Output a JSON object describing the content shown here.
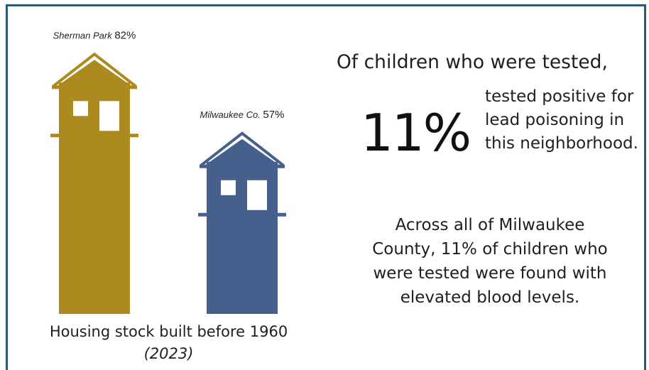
{
  "chart_data": {
    "type": "bar",
    "categories": [
      "Sherman Park",
      "Milwaukee Co."
    ],
    "values": [
      82,
      57
    ],
    "value_labels": [
      "82%",
      "57%"
    ],
    "colors": [
      "#ad8a1f",
      "#46608e"
    ],
    "caption": "Housing stock built before 1960",
    "caption_year": "(2023)"
  },
  "stats": {
    "lead": "Of children who were tested,",
    "big_number": "11%",
    "big_caption": "tested positive for lead poisoning in this neighborhood.",
    "county_note": "Across all of Milwaukee County, 11% of children who were tested were found with elevated blood levels."
  }
}
